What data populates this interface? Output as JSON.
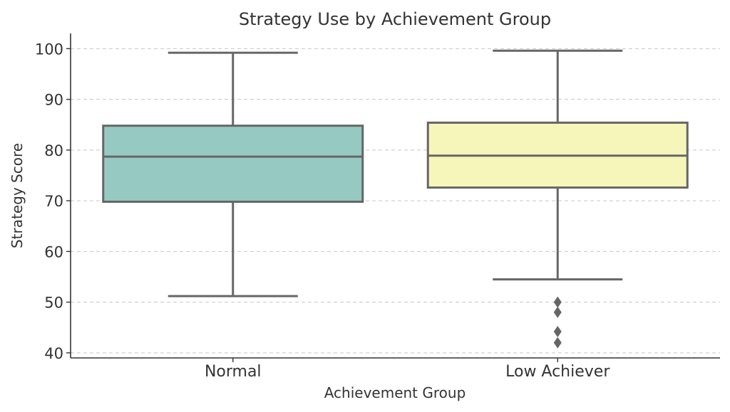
{
  "chart_data": {
    "type": "box",
    "title": "Strategy Use by Achievement Group",
    "xlabel": "Achievement Group",
    "ylabel": "Strategy Score",
    "categories": [
      "Normal",
      "Low Achiever"
    ],
    "ylim": [
      39,
      103
    ],
    "yticks": [
      40,
      50,
      60,
      70,
      80,
      90,
      100
    ],
    "grid": true,
    "series": [
      {
        "category": "Normal",
        "color": "#96C9C1",
        "whisker_low": 51.2,
        "q1": 69.8,
        "median": 78.7,
        "q3": 84.8,
        "whisker_high": 99.2,
        "outliers": []
      },
      {
        "category": "Low Achiever",
        "color": "#F7F6BA",
        "whisker_low": 54.5,
        "q1": 72.6,
        "median": 78.9,
        "q3": 85.4,
        "whisker_high": 99.6,
        "outliers": [
          50.0,
          48.0,
          44.2,
          42.0
        ]
      }
    ]
  }
}
